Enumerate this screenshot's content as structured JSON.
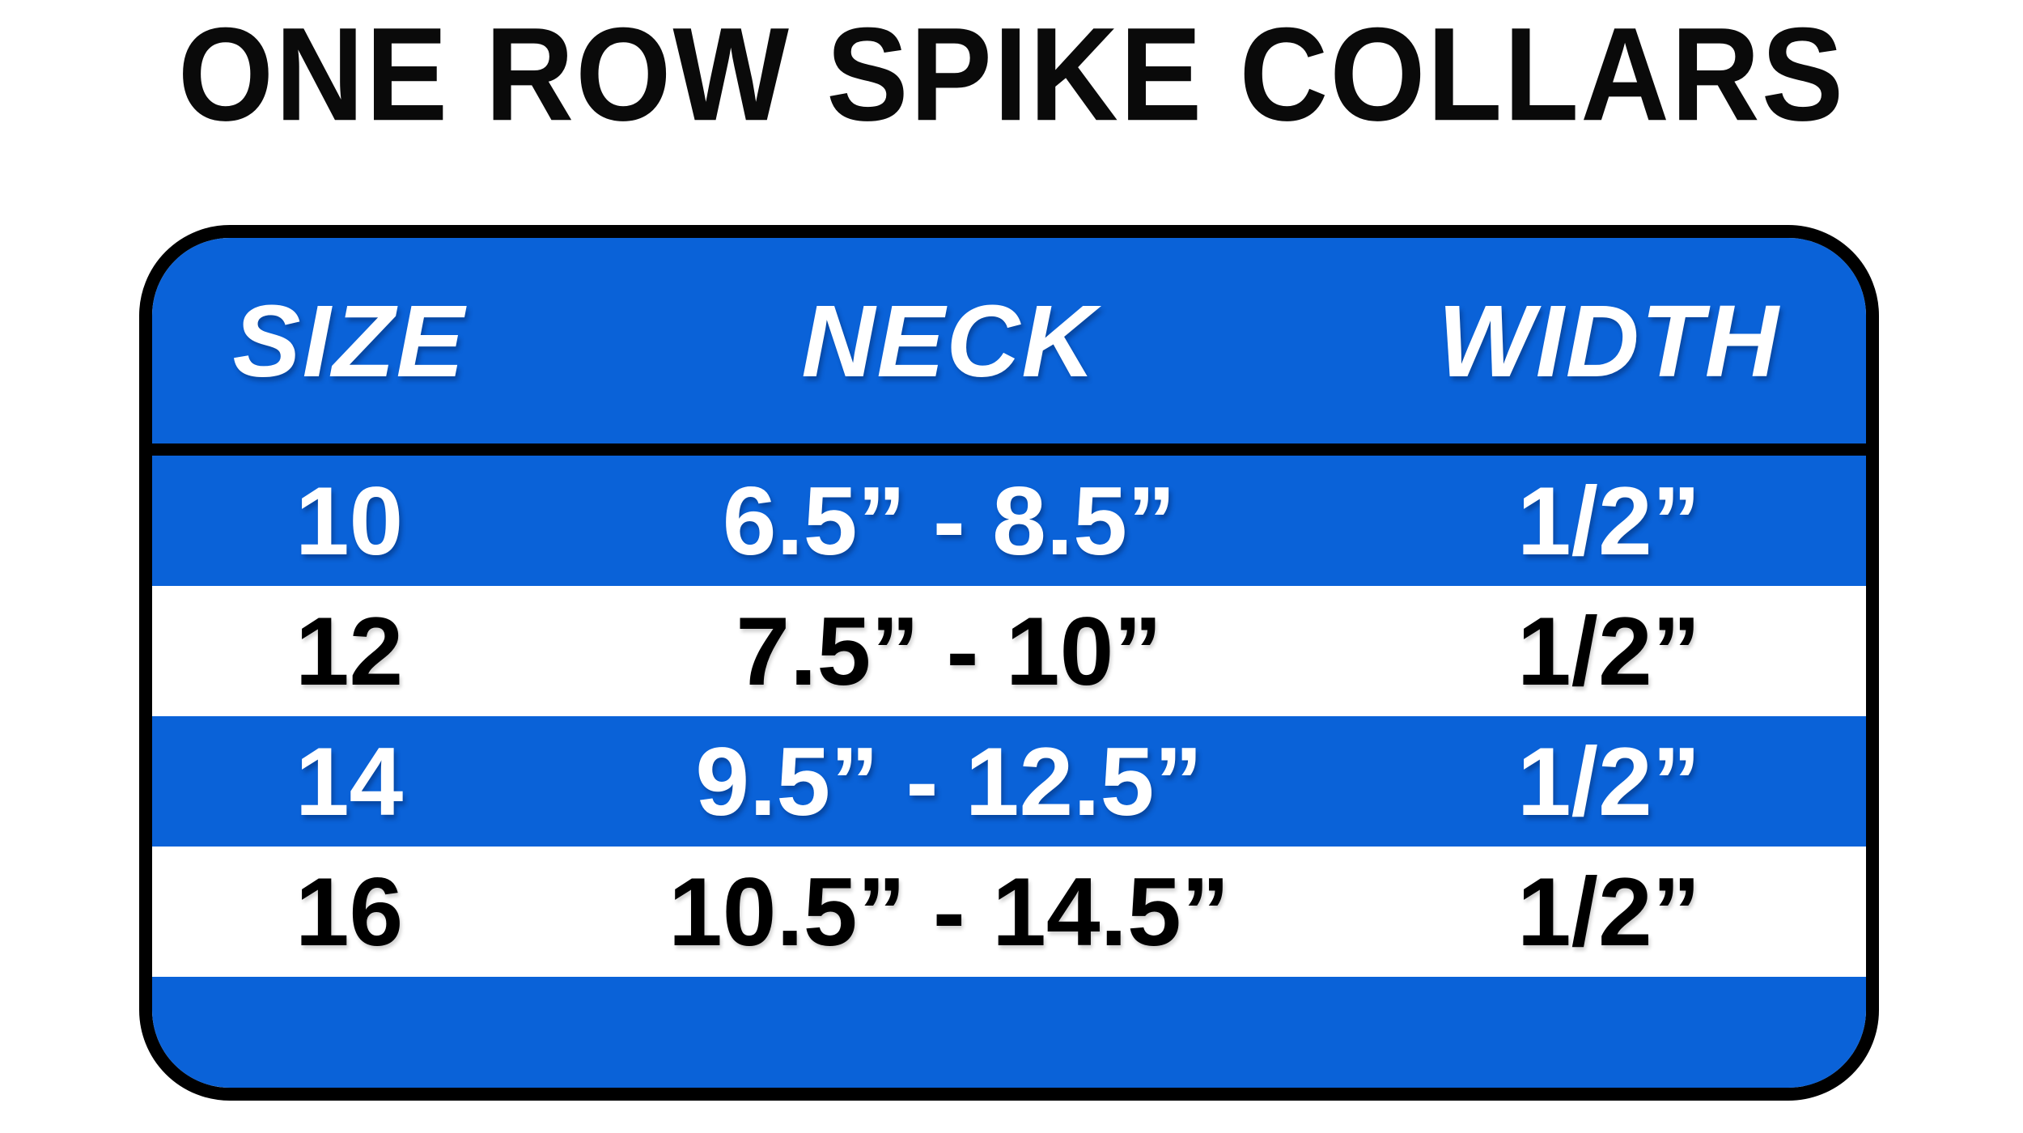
{
  "title": "ONE ROW SPIKE COLLARS",
  "colors": {
    "accent_blue": "#0A62D8",
    "border_black": "#000000",
    "header_text": "#FFFFFF",
    "alt_row_text": "#000000",
    "background": "#FFFFFF"
  },
  "chart_data": {
    "type": "table",
    "title": "ONE ROW SPIKE COLLARS",
    "columns": [
      "SIZE",
      "NECK",
      "WIDTH"
    ],
    "rows": [
      [
        "10",
        "6.5” - 8.5”",
        "1/2”"
      ],
      [
        "12",
        "7.5” - 10”",
        "1/2”"
      ],
      [
        "14",
        "9.5” - 12.5”",
        "1/2”"
      ],
      [
        "16",
        "10.5” - 14.5”",
        "1/2”"
      ]
    ],
    "layout_hints": {
      "header_background": "#0A62D8",
      "row_background_alternation": [
        "#0A62D8",
        "#FFFFFF"
      ],
      "row_text_alternation": [
        "#FFFFFF",
        "#000000"
      ],
      "table_border": "black rounded rectangle",
      "footer_band": "empty blue band at bottom"
    }
  }
}
